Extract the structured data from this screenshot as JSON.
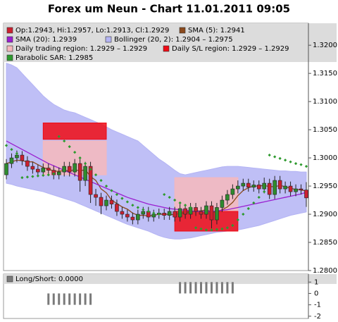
{
  "chart_data": [
    {
      "type": "candlestick",
      "title": "Forex um Neun - Chart 11.01.2011 09:05",
      "ylim": [
        1.28,
        1.3239
      ],
      "yticks": [
        {
          "value": 1.28,
          "label": "1.2800"
        },
        {
          "value": 1.285,
          "label": "1.2850"
        },
        {
          "value": 1.29,
          "label": "1.2900"
        },
        {
          "value": 1.295,
          "label": "1.2950"
        },
        {
          "value": 1.3,
          "label": "1.3000"
        },
        {
          "value": 1.305,
          "label": "1.3050"
        },
        {
          "value": 1.31,
          "label": "1.3100"
        },
        {
          "value": 1.315,
          "label": "1.3150"
        },
        {
          "value": 1.32,
          "label": "1.3200"
        }
      ],
      "candles": {
        "name": "Op:1.2943, Hi:1.2957, Lo:1.2913, Cl:1.2929",
        "up_color": "#2e8b2e",
        "down_color": "#cc2030",
        "open": [
          1.297,
          1.299,
          1.3,
          1.3005,
          1.2995,
          1.2985,
          1.298,
          1.2975,
          1.2982,
          1.2978,
          1.297,
          1.2975,
          1.2985,
          1.2975,
          1.299,
          1.296,
          1.2985,
          1.2935,
          1.293,
          1.2915,
          1.2925,
          1.2918,
          1.2905,
          1.29,
          1.2895,
          1.289,
          1.29,
          1.2905,
          1.2895,
          1.29,
          1.2902,
          1.2898,
          1.2905,
          1.2895,
          1.291,
          1.29,
          1.2912,
          1.2905,
          1.29,
          1.2915,
          1.289,
          1.2912,
          1.2925,
          1.2935,
          1.2945,
          1.295,
          1.2955,
          1.2948,
          1.2952,
          1.2945,
          1.2955,
          1.2935,
          1.296,
          1.2945,
          1.295,
          1.294,
          1.2945,
          1.2943
        ],
        "high": [
          1.2998,
          1.3008,
          1.3013,
          1.3012,
          1.3003,
          1.2993,
          1.2988,
          1.299,
          1.299,
          1.2986,
          1.2983,
          1.2993,
          1.2993,
          1.2998,
          1.2998,
          1.2993,
          1.2993,
          1.2945,
          1.2938,
          1.2933,
          1.2933,
          1.2926,
          1.2913,
          1.2908,
          1.2903,
          1.2908,
          1.2913,
          1.2913,
          1.2908,
          1.291,
          1.291,
          1.2913,
          1.2913,
          1.2918,
          1.2918,
          1.292,
          1.292,
          1.2913,
          1.2923,
          1.2923,
          1.292,
          1.2933,
          1.2943,
          1.2953,
          1.296,
          1.2963,
          1.2963,
          1.296,
          1.296,
          1.2965,
          1.2963,
          1.2968,
          1.2968,
          1.2958,
          1.2958,
          1.2953,
          1.2953,
          1.2957
        ],
        "low": [
          1.2962,
          1.2982,
          1.2992,
          1.2987,
          1.2977,
          1.2972,
          1.2967,
          1.2967,
          1.297,
          1.2962,
          1.2962,
          1.2967,
          1.2967,
          1.2967,
          1.294,
          1.295,
          1.292,
          1.2915,
          1.29,
          1.2907,
          1.291,
          1.2897,
          1.2892,
          1.2887,
          1.2882,
          1.2882,
          1.2892,
          1.2887,
          1.2887,
          1.2892,
          1.289,
          1.289,
          1.2887,
          1.2887,
          1.2892,
          1.2892,
          1.2897,
          1.2892,
          1.2892,
          1.2875,
          1.2882,
          1.2904,
          1.2917,
          1.2927,
          1.2937,
          1.2942,
          1.294,
          1.294,
          1.2937,
          1.2937,
          1.2927,
          1.2927,
          1.2937,
          1.2937,
          1.2932,
          1.2932,
          1.2935,
          1.2913
        ],
        "close": [
          1.299,
          1.3,
          1.3005,
          1.2995,
          1.2985,
          1.298,
          1.2975,
          1.2982,
          1.2978,
          1.297,
          1.2975,
          1.2985,
          1.2975,
          1.299,
          1.296,
          1.2985,
          1.2935,
          1.293,
          1.2915,
          1.2925,
          1.2918,
          1.2905,
          1.29,
          1.2895,
          1.289,
          1.29,
          1.2905,
          1.2895,
          1.29,
          1.2902,
          1.2898,
          1.2905,
          1.2895,
          1.291,
          1.29,
          1.2912,
          1.2905,
          1.29,
          1.2915,
          1.289,
          1.2912,
          1.2925,
          1.2935,
          1.2945,
          1.295,
          1.2955,
          1.2948,
          1.2952,
          1.2945,
          1.2955,
          1.2935,
          1.296,
          1.2945,
          1.295,
          1.294,
          1.2945,
          1.2943,
          1.2929
        ]
      },
      "overlays": [
        {
          "type": "line",
          "name": "SMA (5): 1.2941",
          "color": "#8b4a1c",
          "values": [
            1.299,
            1.2993,
            1.2996,
            1.2995,
            1.2993,
            1.2993,
            1.2988,
            1.2983,
            1.298,
            1.2977,
            1.2976,
            1.2978,
            1.2977,
            1.2979,
            1.2977,
            1.2979,
            1.2967,
            1.296,
            1.2945,
            1.2938,
            1.2925,
            1.2919,
            1.2913,
            1.2909,
            1.2902,
            1.2898,
            1.2898,
            1.2897,
            1.2898,
            1.29,
            1.29,
            1.29,
            1.2899,
            1.2902,
            1.2902,
            1.2904,
            1.2906,
            1.2906,
            1.2908,
            1.2904,
            1.2904,
            1.2908,
            1.2913,
            1.2921,
            1.2933,
            1.2942,
            1.2947,
            1.295,
            1.295,
            1.2951,
            1.2949,
            1.2949,
            1.2951,
            1.2949,
            1.2946,
            1.2944,
            1.2943,
            1.2941
          ]
        },
        {
          "type": "line",
          "name": "SMA (20): 1.2939",
          "color": "#9a1fd0",
          "values": [
            1.303,
            1.3025,
            1.302,
            1.3015,
            1.301,
            1.3005,
            1.3,
            1.2995,
            1.299,
            1.2986,
            1.2982,
            1.2978,
            1.2974,
            1.297,
            1.2966,
            1.2962,
            1.2958,
            1.2954,
            1.295,
            1.2946,
            1.2942,
            1.2938,
            1.2934,
            1.293,
            1.2927,
            1.2924,
            1.2921,
            1.2918,
            1.2916,
            1.2914,
            1.2912,
            1.291,
            1.2909,
            1.2908,
            1.2907,
            1.2906,
            1.2905,
            1.2905,
            1.2905,
            1.2905,
            1.2906,
            1.2907,
            1.2908,
            1.291,
            1.2912,
            1.2914,
            1.2916,
            1.2918,
            1.292,
            1.2922,
            1.2924,
            1.2926,
            1.2928,
            1.293,
            1.2932,
            1.2934,
            1.2936,
            1.2939
          ]
        },
        {
          "type": "band",
          "name": "Bollinger (20, 2): 1.2904 – 1.2975",
          "color": "#b4b4f4",
          "high": [
            1.3168,
            1.3165,
            1.316,
            1.315,
            1.314,
            1.313,
            1.312,
            1.311,
            1.3102,
            1.3095,
            1.309,
            1.3085,
            1.3082,
            1.308,
            1.3076,
            1.3072,
            1.3068,
            1.3064,
            1.306,
            1.3055,
            1.305,
            1.3046,
            1.3042,
            1.3038,
            1.3034,
            1.303,
            1.3022,
            1.3014,
            1.3006,
            1.2998,
            1.2992,
            1.2985,
            1.2978,
            1.2972,
            1.297,
            1.2972,
            1.2974,
            1.2976,
            1.2978,
            1.298,
            1.2982,
            1.2984,
            1.2985,
            1.2985,
            1.2985,
            1.2984,
            1.2983,
            1.2982,
            1.2981,
            1.298,
            1.2979,
            1.2978,
            1.2977,
            1.2977,
            1.2976,
            1.2976,
            1.2975,
            1.2975
          ],
          "low": [
            1.2955,
            1.2953,
            1.295,
            1.2948,
            1.2946,
            1.2944,
            1.2942,
            1.294,
            1.2937,
            1.2934,
            1.2931,
            1.2928,
            1.2925,
            1.2922,
            1.2918,
            1.2914,
            1.291,
            1.2906,
            1.2902,
            1.2898,
            1.2894,
            1.289,
            1.2886,
            1.2882,
            1.2879,
            1.2876,
            1.2873,
            1.287,
            1.2866,
            1.2862,
            1.2859,
            1.2857,
            1.2856,
            1.2856,
            1.2857,
            1.2858,
            1.286,
            1.2862,
            1.2864,
            1.2866,
            1.2868,
            1.2869,
            1.287,
            1.2871,
            1.2872,
            1.2874,
            1.2876,
            1.2878,
            1.288,
            1.2883,
            1.2886,
            1.2889,
            1.2892,
            1.2895,
            1.2898,
            1.29,
            1.2902,
            1.2904
          ]
        },
        {
          "type": "band",
          "name": "Daily trading region: 1.2929 – 1.2929",
          "color": "#f6b8bc",
          "high": [
            null,
            null,
            null,
            null,
            null,
            null,
            null,
            1.303,
            1.303,
            1.303,
            1.303,
            1.303,
            1.303,
            1.303,
            1.303,
            1.303,
            1.303,
            1.303,
            1.303,
            1.303,
            null,
            null,
            null,
            null,
            null,
            null,
            null,
            null,
            null,
            null,
            null,
            null,
            1.2965,
            1.2965,
            1.2965,
            1.2965,
            1.2965,
            1.2965,
            1.2965,
            1.2965,
            1.2965,
            1.2965,
            1.2965,
            1.2965,
            1.2965,
            null,
            null,
            null,
            null,
            null,
            null,
            null,
            null,
            null,
            null,
            null,
            null,
            null
          ],
          "low": [
            null,
            null,
            null,
            null,
            null,
            null,
            null,
            1.297,
            1.297,
            1.297,
            1.297,
            1.297,
            1.297,
            1.297,
            1.297,
            1.297,
            1.297,
            1.297,
            1.297,
            1.297,
            null,
            null,
            null,
            null,
            null,
            null,
            null,
            null,
            null,
            null,
            null,
            null,
            1.2905,
            1.2905,
            1.2905,
            1.2905,
            1.2905,
            1.2905,
            1.2905,
            1.2905,
            1.2905,
            1.2905,
            1.2905,
            1.2905,
            1.2905,
            null,
            null,
            null,
            null,
            null,
            null,
            null,
            null,
            null,
            null,
            null,
            null,
            null
          ]
        },
        {
          "type": "band",
          "name": "Daily S/L region: 1.2929 – 1.2929",
          "color": "#ee0a14",
          "high": [
            null,
            null,
            null,
            null,
            null,
            null,
            null,
            1.3062,
            1.3062,
            1.3062,
            1.3062,
            1.3062,
            1.3062,
            1.3062,
            1.3062,
            1.3062,
            1.3062,
            1.3062,
            1.3062,
            1.3062,
            null,
            null,
            null,
            null,
            null,
            null,
            null,
            null,
            null,
            null,
            null,
            null,
            1.2905,
            1.2905,
            1.2905,
            1.2905,
            1.2905,
            1.2905,
            1.2905,
            1.2905,
            1.2905,
            1.2905,
            1.2905,
            1.2905,
            1.2905,
            null,
            null,
            null,
            null,
            null,
            null,
            null,
            null,
            null,
            null,
            null,
            null,
            null
          ],
          "low": [
            null,
            null,
            null,
            null,
            null,
            null,
            null,
            1.3033,
            1.3033,
            1.3033,
            1.3033,
            1.3033,
            1.3033,
            1.3033,
            1.3033,
            1.3033,
            1.3033,
            1.3033,
            1.3033,
            1.3033,
            null,
            null,
            null,
            null,
            null,
            null,
            null,
            null,
            null,
            null,
            null,
            null,
            1.287,
            1.287,
            1.287,
            1.287,
            1.287,
            1.287,
            1.287,
            1.287,
            1.287,
            1.287,
            1.287,
            1.287,
            1.287,
            null,
            null,
            null,
            null,
            null,
            null,
            null,
            null,
            null,
            null,
            null,
            null,
            null
          ]
        },
        {
          "type": "dots",
          "name": "Parabolic SAR: 1.2985",
          "color": "#2e9a2e",
          "values": [
            1.3022,
            1.3015,
            1.3008,
            1.2965,
            1.2966,
            1.2967,
            1.2968,
            1.2969,
            1.297,
            1.2972,
            1.3038,
            1.303,
            1.302,
            1.301,
            1.3,
            1.299,
            1.298,
            1.297,
            1.296,
            1.295,
            1.2942,
            1.2935,
            1.2928,
            1.2922,
            1.2916,
            1.2912,
            1.2908,
            1.2905,
            1.2902,
            1.29,
            1.2935,
            1.293,
            1.2925,
            1.292,
            1.2916,
            1.2912,
            1.2876,
            1.2874,
            1.2872,
            1.2872,
            1.2873,
            1.2874,
            1.2876,
            1.288,
            1.289,
            1.29,
            1.291,
            1.292,
            1.293,
            1.294,
            1.3005,
            1.3002,
            1.2999,
            1.2996,
            1.2993,
            1.299,
            1.2988,
            1.2985
          ]
        }
      ]
    },
    {
      "type": "bar",
      "ylim": [
        -2.2,
        1.7
      ],
      "yticks": [
        1,
        0,
        -1,
        -2
      ],
      "series": [
        {
          "name": "Long/Short: 0.0000",
          "color": "#7a7a7a",
          "values": [
            0,
            0,
            0,
            0,
            0,
            0,
            0,
            0,
            -1,
            -1,
            -1,
            -1,
            -1,
            -1,
            -1,
            -1,
            -1,
            0,
            0,
            0,
            0,
            0,
            0,
            0,
            0,
            0,
            0,
            0,
            0,
            0,
            0,
            0,
            0,
            1,
            1,
            1,
            1,
            1,
            1,
            1,
            1,
            1,
            1,
            1,
            0,
            0,
            0,
            0,
            0,
            0,
            0,
            0,
            0,
            0,
            0,
            0,
            0,
            0
          ]
        }
      ]
    }
  ]
}
